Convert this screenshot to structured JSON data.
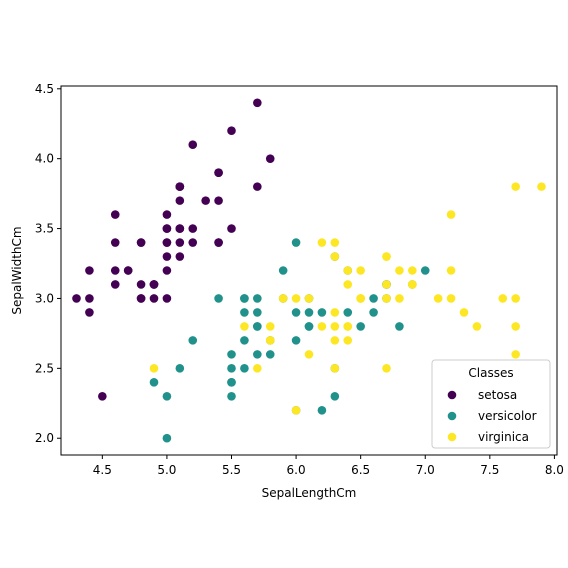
{
  "chart_data": {
    "type": "scatter",
    "title": "",
    "xlabel": "SepalLengthCm",
    "ylabel": "SepalWidthCm",
    "xlim": [
      4.18,
      8.02
    ],
    "ylim": [
      1.88,
      4.52
    ],
    "xticks": [
      "4.5",
      "5.0",
      "5.5",
      "6.0",
      "6.5",
      "7.0",
      "7.5",
      "8.0"
    ],
    "yticks": [
      "2.0",
      "2.5",
      "3.0",
      "3.5",
      "4.0",
      "4.5"
    ],
    "grid": false,
    "legend": {
      "title": "Classes",
      "placement": "bottom-right"
    },
    "series": [
      {
        "name": "setosa",
        "color": "#440154",
        "points": [
          [
            5.1,
            3.5
          ],
          [
            4.9,
            3.0
          ],
          [
            4.7,
            3.2
          ],
          [
            4.6,
            3.1
          ],
          [
            5.0,
            3.6
          ],
          [
            5.4,
            3.9
          ],
          [
            4.6,
            3.4
          ],
          [
            5.0,
            3.4
          ],
          [
            4.4,
            2.9
          ],
          [
            4.9,
            3.1
          ],
          [
            5.4,
            3.7
          ],
          [
            4.8,
            3.4
          ],
          [
            4.8,
            3.0
          ],
          [
            4.3,
            3.0
          ],
          [
            5.8,
            4.0
          ],
          [
            5.7,
            4.4
          ],
          [
            5.4,
            3.9
          ],
          [
            5.1,
            3.5
          ],
          [
            5.7,
            3.8
          ],
          [
            5.1,
            3.8
          ],
          [
            5.4,
            3.4
          ],
          [
            5.1,
            3.7
          ],
          [
            4.6,
            3.6
          ],
          [
            5.1,
            3.3
          ],
          [
            4.8,
            3.4
          ],
          [
            5.0,
            3.0
          ],
          [
            5.0,
            3.4
          ],
          [
            5.2,
            3.5
          ],
          [
            5.2,
            3.4
          ],
          [
            4.7,
            3.2
          ],
          [
            4.8,
            3.1
          ],
          [
            5.4,
            3.4
          ],
          [
            5.2,
            4.1
          ],
          [
            5.5,
            4.2
          ],
          [
            4.9,
            3.1
          ],
          [
            5.0,
            3.2
          ],
          [
            5.5,
            3.5
          ],
          [
            4.9,
            3.1
          ],
          [
            4.4,
            3.0
          ],
          [
            5.1,
            3.4
          ],
          [
            5.0,
            3.5
          ],
          [
            4.5,
            2.3
          ],
          [
            4.4,
            3.2
          ],
          [
            5.0,
            3.5
          ],
          [
            5.1,
            3.8
          ],
          [
            4.8,
            3.0
          ],
          [
            5.1,
            3.8
          ],
          [
            4.6,
            3.2
          ],
          [
            5.3,
            3.7
          ],
          [
            5.0,
            3.3
          ]
        ]
      },
      {
        "name": "versicolor",
        "color": "#21918c",
        "points": [
          [
            7.0,
            3.2
          ],
          [
            6.4,
            3.2
          ],
          [
            6.9,
            3.1
          ],
          [
            5.5,
            2.3
          ],
          [
            6.5,
            2.8
          ],
          [
            5.7,
            2.8
          ],
          [
            6.3,
            3.3
          ],
          [
            4.9,
            2.4
          ],
          [
            6.6,
            2.9
          ],
          [
            5.2,
            2.7
          ],
          [
            5.0,
            2.0
          ],
          [
            5.9,
            3.0
          ],
          [
            6.0,
            2.2
          ],
          [
            6.1,
            2.9
          ],
          [
            5.6,
            2.9
          ],
          [
            6.7,
            3.1
          ],
          [
            5.6,
            3.0
          ],
          [
            5.8,
            2.7
          ],
          [
            6.2,
            2.2
          ],
          [
            5.6,
            2.5
          ],
          [
            5.9,
            3.2
          ],
          [
            6.1,
            2.8
          ],
          [
            6.3,
            2.5
          ],
          [
            6.1,
            2.8
          ],
          [
            6.4,
            2.9
          ],
          [
            6.6,
            3.0
          ],
          [
            6.8,
            2.8
          ],
          [
            6.7,
            3.0
          ],
          [
            6.0,
            2.9
          ],
          [
            5.7,
            2.6
          ],
          [
            5.5,
            2.4
          ],
          [
            5.5,
            2.4
          ],
          [
            5.8,
            2.7
          ],
          [
            6.0,
            2.7
          ],
          [
            5.4,
            3.0
          ],
          [
            6.0,
            3.4
          ],
          [
            6.7,
            3.1
          ],
          [
            6.3,
            2.3
          ],
          [
            5.6,
            3.0
          ],
          [
            5.5,
            2.5
          ],
          [
            5.5,
            2.6
          ],
          [
            6.1,
            3.0
          ],
          [
            5.8,
            2.6
          ],
          [
            5.0,
            2.3
          ],
          [
            5.6,
            2.7
          ],
          [
            5.7,
            3.0
          ],
          [
            5.7,
            2.9
          ],
          [
            6.2,
            2.9
          ],
          [
            5.1,
            2.5
          ],
          [
            5.7,
            2.8
          ]
        ]
      },
      {
        "name": "virginica",
        "color": "#fde725",
        "points": [
          [
            6.3,
            3.3
          ],
          [
            5.8,
            2.7
          ],
          [
            7.1,
            3.0
          ],
          [
            6.3,
            2.9
          ],
          [
            6.5,
            3.0
          ],
          [
            7.6,
            3.0
          ],
          [
            4.9,
            2.5
          ],
          [
            7.3,
            2.9
          ],
          [
            6.7,
            2.5
          ],
          [
            7.2,
            3.6
          ],
          [
            6.5,
            3.2
          ],
          [
            6.4,
            2.7
          ],
          [
            6.8,
            3.0
          ],
          [
            5.7,
            2.5
          ],
          [
            5.8,
            2.8
          ],
          [
            6.4,
            3.2
          ],
          [
            6.5,
            3.0
          ],
          [
            7.7,
            3.8
          ],
          [
            7.7,
            2.6
          ],
          [
            6.0,
            2.2
          ],
          [
            6.9,
            3.2
          ],
          [
            5.6,
            2.8
          ],
          [
            7.7,
            2.8
          ],
          [
            6.3,
            2.7
          ],
          [
            6.7,
            3.3
          ],
          [
            7.2,
            3.2
          ],
          [
            6.2,
            2.8
          ],
          [
            6.1,
            3.0
          ],
          [
            6.4,
            2.8
          ],
          [
            7.2,
            3.0
          ],
          [
            7.4,
            2.8
          ],
          [
            7.9,
            3.8
          ],
          [
            6.4,
            2.8
          ],
          [
            6.3,
            2.8
          ],
          [
            6.1,
            2.6
          ],
          [
            7.7,
            3.0
          ],
          [
            6.3,
            3.4
          ],
          [
            6.4,
            3.1
          ],
          [
            6.0,
            3.0
          ],
          [
            6.9,
            3.1
          ],
          [
            6.7,
            3.1
          ],
          [
            6.9,
            3.1
          ],
          [
            5.8,
            2.7
          ],
          [
            6.8,
            3.2
          ],
          [
            6.7,
            3.3
          ],
          [
            6.7,
            3.0
          ],
          [
            6.3,
            2.5
          ],
          [
            6.5,
            3.0
          ],
          [
            6.2,
            3.4
          ],
          [
            5.9,
            3.0
          ]
        ]
      }
    ]
  }
}
